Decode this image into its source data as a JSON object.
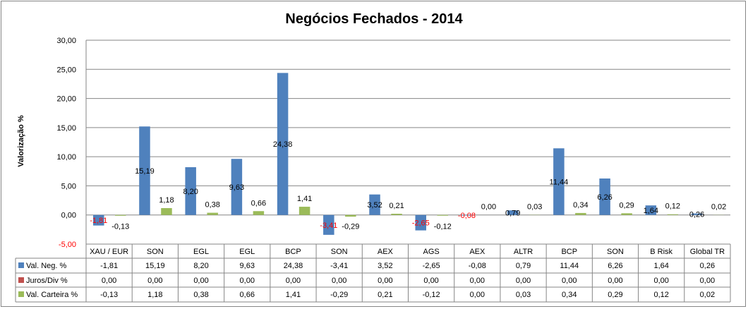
{
  "chart_data": {
    "type": "bar",
    "title": "Negócios Fechados - 2014",
    "xlabel": "",
    "ylabel": "Valorização %",
    "ylim": [
      -5,
      30
    ],
    "yticks": [
      "-5,00",
      "0,00",
      "5,00",
      "10,00",
      "15,00",
      "20,00",
      "25,00",
      "30,00"
    ],
    "ytick_values": [
      -5,
      0,
      5,
      10,
      15,
      20,
      25,
      30
    ],
    "grid": true,
    "legend": "data-table",
    "categories": [
      "XAU / EUR",
      "SON",
      "EGL",
      "EGL",
      "BCP",
      "SON",
      "AEX",
      "AGS",
      "AEX",
      "ALTR",
      "BCP",
      "SON",
      "B Risk",
      "Global TR"
    ],
    "series": [
      {
        "name": "Val. Neg. %",
        "color": "#4F81BD",
        "show_labels": true,
        "values": [
          -1.81,
          15.19,
          8.2,
          9.63,
          24.38,
          -3.41,
          3.52,
          -2.65,
          -0.08,
          0.79,
          11.44,
          6.26,
          1.64,
          0.26
        ],
        "labels": [
          "-1,81",
          "15,19",
          "8,20",
          "9,63",
          "24,38",
          "-3,41",
          "3,52",
          "-2,65",
          "-0,08",
          "0,79",
          "11,44",
          "6,26",
          "1,64",
          "0,26"
        ]
      },
      {
        "name": "Juros/Div %",
        "color": "#C0504D",
        "show_labels": false,
        "values": [
          0,
          0,
          0,
          0,
          0,
          0,
          0,
          0,
          0,
          0,
          0,
          0,
          0,
          0
        ],
        "labels": [
          "0,00",
          "0,00",
          "0,00",
          "0,00",
          "0,00",
          "0,00",
          "0,00",
          "0,00",
          "0,00",
          "0,00",
          "0,00",
          "0,00",
          "0,00",
          "0,00"
        ]
      },
      {
        "name": "Val. Carteira %",
        "color": "#9BBB59",
        "show_labels": true,
        "values": [
          -0.13,
          1.18,
          0.38,
          0.66,
          1.41,
          -0.29,
          0.21,
          -0.12,
          0.0,
          0.03,
          0.34,
          0.29,
          0.12,
          0.02
        ],
        "labels": [
          "-0,13",
          "1,18",
          "0,38",
          "0,66",
          "1,41",
          "-0,29",
          "0,21",
          "-0,12",
          "0,00",
          "0,03",
          "0,34",
          "0,29",
          "0,12",
          "0,02"
        ]
      }
    ],
    "negative_label_color": "#FF0000"
  }
}
